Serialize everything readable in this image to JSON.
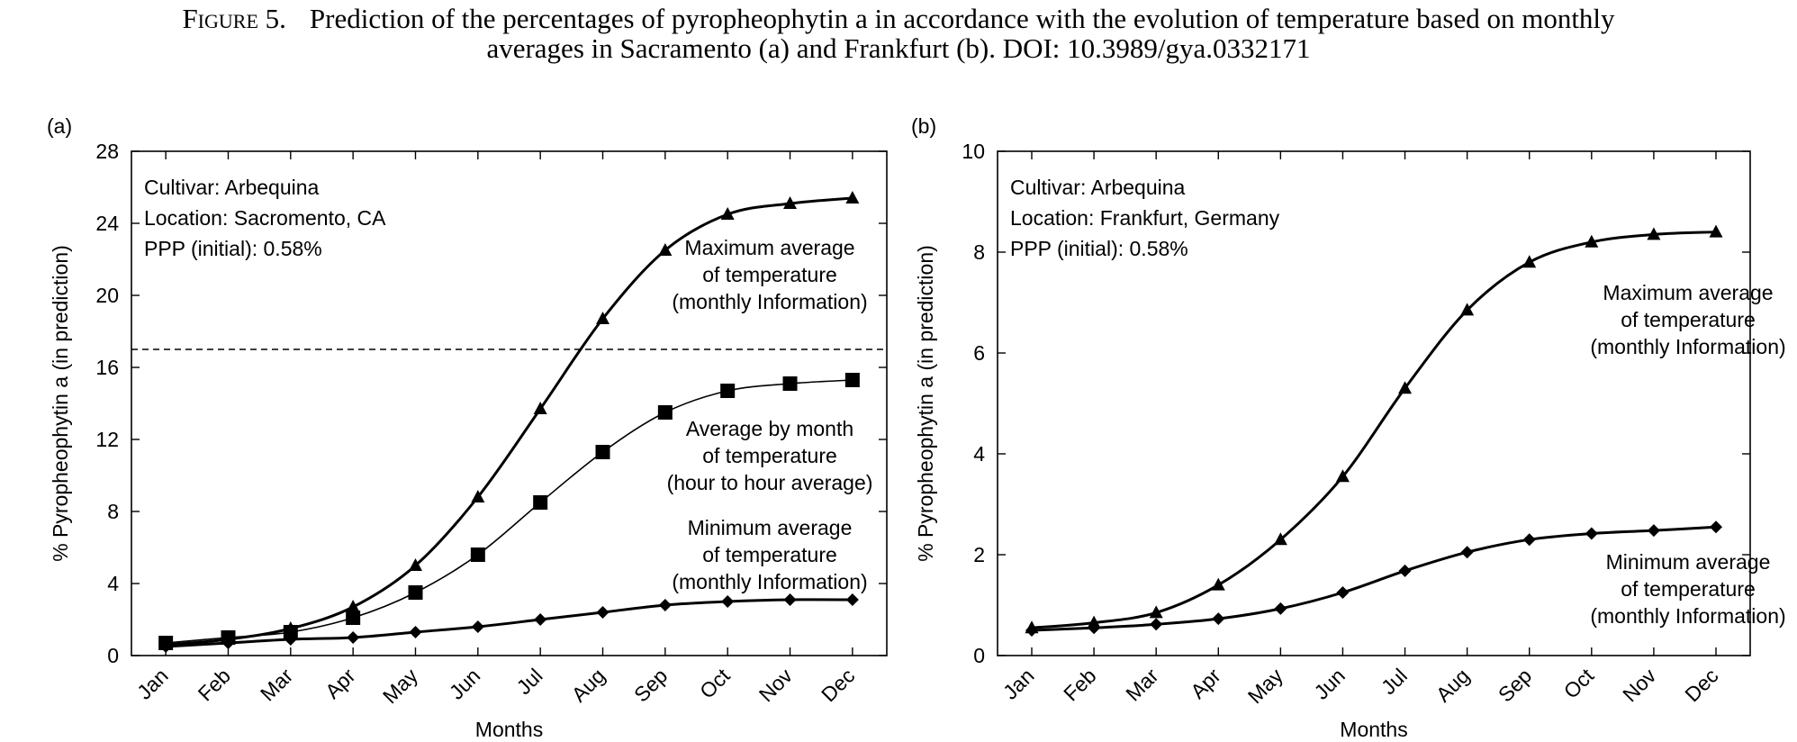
{
  "caption": {
    "label": "Figure 5.",
    "text_line1": "Prediction of the percentages of pyropheophytin a in accordance with the evolution of temperature based on monthly",
    "text_line2": "averages in Sacramento (a) and Frankfurt (b). DOI: 10.3989/gya.0332171"
  },
  "chart_data": [
    {
      "type": "line",
      "panel_label": "(a)",
      "xlabel": "Months",
      "ylabel": "% Pyropheophytin a (in prediction)",
      "categories": [
        "Jan",
        "Feb",
        "Mar",
        "Apr",
        "May",
        "Jun",
        "Jul",
        "Aug",
        "Sep",
        "Oct",
        "Nov",
        "Dec"
      ],
      "ylim": [
        0,
        28
      ],
      "yticks": [
        0,
        4,
        8,
        12,
        16,
        20,
        24,
        28
      ],
      "reference_line": 17,
      "info": [
        "Cultivar: Arbequina",
        "Location: Sacromento, CA",
        "PPP (initial): 0.58%"
      ],
      "series": [
        {
          "marker": "triangle",
          "label": [
            "Maximum average",
            "of temperature",
            "(monthly Information)"
          ],
          "values": [
            0.6,
            0.9,
            1.5,
            2.7,
            5.0,
            8.8,
            13.7,
            18.7,
            22.5,
            24.5,
            25.1,
            25.4
          ]
        },
        {
          "marker": "square",
          "label": [
            "Average by month",
            "of temperature",
            "(hour to hour average)"
          ],
          "values": [
            0.7,
            1.0,
            1.3,
            2.1,
            3.5,
            5.6,
            8.5,
            11.3,
            13.5,
            14.7,
            15.1,
            15.3
          ]
        },
        {
          "marker": "diamond",
          "label": [
            "Minimum average",
            "of temperature",
            "(monthly Information)"
          ],
          "values": [
            0.5,
            0.7,
            0.9,
            1.0,
            1.3,
            1.6,
            2.0,
            2.4,
            2.8,
            3.0,
            3.1,
            3.1
          ]
        }
      ]
    },
    {
      "type": "line",
      "panel_label": "(b)",
      "xlabel": "Months",
      "ylabel": "% Pyropheophytin a (in prediction)",
      "categories": [
        "Jan",
        "Feb",
        "Mar",
        "Apr",
        "May",
        "Jun",
        "Jul",
        "Aug",
        "Sep",
        "Oct",
        "Nov",
        "Dec"
      ],
      "ylim": [
        0,
        10
      ],
      "yticks": [
        0,
        2,
        4,
        6,
        8,
        10
      ],
      "info": [
        "Cultivar: Arbequina",
        "Location: Frankfurt, Germany",
        "PPP (initial): 0.58%"
      ],
      "series": [
        {
          "marker": "triangle",
          "label": [
            "Maximum average",
            "of temperature",
            "(monthly Information)"
          ],
          "values": [
            0.55,
            0.65,
            0.85,
            1.4,
            2.3,
            3.55,
            5.3,
            6.85,
            7.8,
            8.2,
            8.35,
            8.4
          ]
        },
        {
          "marker": "diamond",
          "label": [
            "Minimum average",
            "of temperature",
            "(monthly Information)"
          ],
          "values": [
            0.5,
            0.55,
            0.62,
            0.73,
            0.93,
            1.25,
            1.68,
            2.05,
            2.3,
            2.42,
            2.48,
            2.55
          ]
        }
      ]
    }
  ]
}
